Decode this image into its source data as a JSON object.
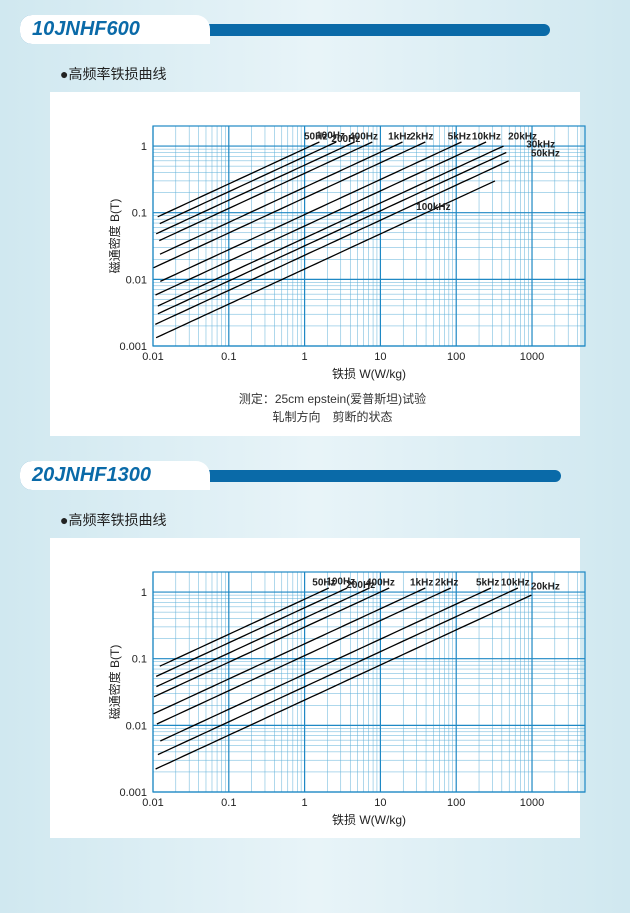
{
  "page_bg_gradient": [
    "#d0e8f0",
    "#e8f4f8",
    "#d0e8f0"
  ],
  "title_accent": "#0a6aa8",
  "chart_bg": "#ffffff",
  "grid_major_color": "#1e88c4",
  "grid_minor_color": "#5fb0d8",
  "curve_color": "#000000",
  "text_color": "#222222",
  "sections": [
    {
      "id": "s1",
      "title": "10JNHF600",
      "subtitle": "●高频率铁损曲线",
      "caption_l1": "测定：25cm epstein(爱普斯坦)试验",
      "caption_l2": "轧制方向　剪断的状态",
      "xlabel": "铁损 W(W/kg)",
      "ylabel": "磁通密度 B(T)",
      "xlim": [
        0.01,
        5000
      ],
      "ylim": [
        0.001,
        2
      ],
      "xticks": [
        0.01,
        0.1,
        1,
        10,
        100,
        1000
      ],
      "yticks": [
        0.001,
        0.01,
        0.1,
        1
      ],
      "xtick_labels": [
        "0.01",
        "0.1",
        "1",
        "10",
        "100",
        "1000"
      ],
      "ytick_labels": [
        "0.001",
        "0.01",
        "0.1",
        "1"
      ],
      "curves": [
        {
          "label": "50Hz",
          "w1": 1.2,
          "label_x": 1.4,
          "label_y": 1.25
        },
        {
          "label": "100Hz",
          "w1": 2.0,
          "label_x": 2.2,
          "label_y": 1.3
        },
        {
          "label": "200Hz",
          "w1": 3.5,
          "label_x": 3.5,
          "label_y": 1.15
        },
        {
          "label": "400Hz",
          "w1": 6.0,
          "label_x": 6.0,
          "label_y": 1.25
        },
        {
          "label": "1kHz",
          "w1": 15,
          "label_x": 18,
          "label_y": 1.25
        },
        {
          "label": "2kHz",
          "w1": 30,
          "label_x": 35,
          "label_y": 1.25
        },
        {
          "label": "5kHz",
          "w1": 90,
          "label_x": 110,
          "label_y": 1.25
        },
        {
          "label": "10kHz",
          "w1": 190,
          "label_x": 250,
          "label_y": 1.25
        },
        {
          "label": "20kHz",
          "w1": 420,
          "label_x": 750,
          "label_y": 1.25,
          "ymax": 1.0
        },
        {
          "label": "30kHz",
          "w1": 700,
          "label_x": 1300,
          "label_y": 0.95,
          "ymax": 0.8
        },
        {
          "label": "50kHz",
          "w1": 1300,
          "label_x": 1500,
          "label_y": 0.7,
          "ymax": 0.6
        },
        {
          "label": "100kHz",
          "w1": 3200,
          "label_x": 50,
          "label_y": 0.11,
          "ymax": 0.3,
          "label_on_curve": true
        }
      ]
    },
    {
      "id": "s2",
      "title": "20JNHF1300",
      "subtitle": "●高频率铁损曲线",
      "caption_l1": "",
      "caption_l2": "",
      "xlabel": "铁损 W(W/kg)",
      "ylabel": "磁通密度 B(T)",
      "xlim": [
        0.01,
        5000
      ],
      "ylim": [
        0.001,
        2
      ],
      "xticks": [
        0.01,
        0.1,
        1,
        10,
        100,
        1000
      ],
      "yticks": [
        0.001,
        0.01,
        0.1,
        1
      ],
      "xtick_labels": [
        "0.01",
        "0.1",
        "1",
        "10",
        "100",
        "1000"
      ],
      "ytick_labels": [
        "0.001",
        "0.01",
        "0.1",
        "1"
      ],
      "curves": [
        {
          "label": "50Hz",
          "w1": 1.6,
          "label_x": 1.8,
          "label_y": 1.25
        },
        {
          "label": "100Hz",
          "w1": 2.8,
          "label_x": 3.0,
          "label_y": 1.3
        },
        {
          "label": "200Hz",
          "w1": 5.5,
          "label_x": 5.5,
          "label_y": 1.15
        },
        {
          "label": "400Hz",
          "w1": 10,
          "label_x": 10,
          "label_y": 1.25
        },
        {
          "label": "1kHz",
          "w1": 30,
          "label_x": 35,
          "label_y": 1.25
        },
        {
          "label": "2kHz",
          "w1": 65,
          "label_x": 75,
          "label_y": 1.25
        },
        {
          "label": "5kHz",
          "w1": 220,
          "label_x": 260,
          "label_y": 1.25
        },
        {
          "label": "10kHz",
          "w1": 500,
          "label_x": 600,
          "label_y": 1.25
        },
        {
          "label": "20kHz",
          "w1": 1200,
          "label_x": 1500,
          "label_y": 1.1,
          "ymax": 0.9
        }
      ]
    }
  ],
  "font_title": 20,
  "font_subtitle": 14,
  "font_axis_label": 12,
  "font_tick": 11,
  "font_curve_label": 10,
  "font_caption": 12,
  "curve_slope": 1.9,
  "curve_width": 1.3,
  "grid_major_width": 1.2,
  "grid_minor_width": 0.5
}
